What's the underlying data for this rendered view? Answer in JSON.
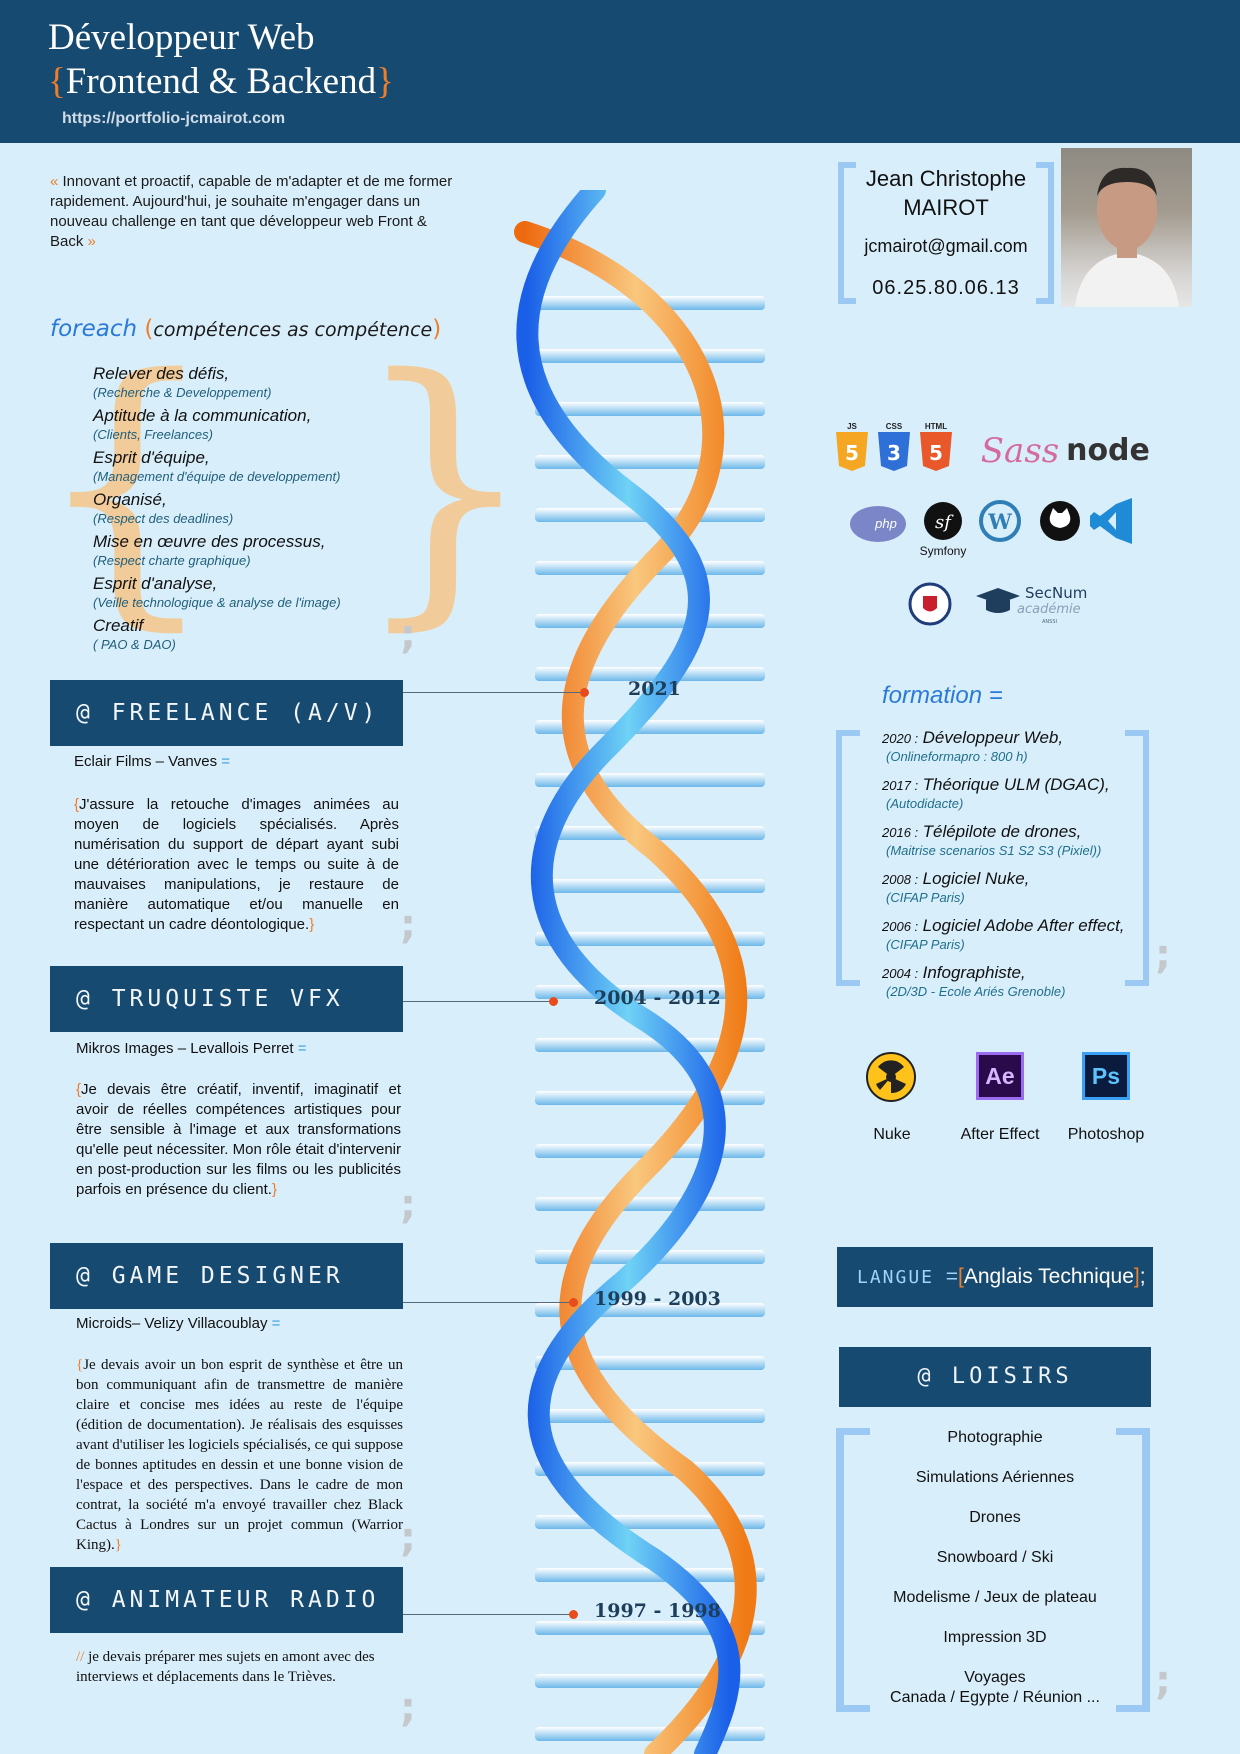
{
  "header": {
    "title_line1": "Développeur Web",
    "title_brace_open": "{",
    "title_line2": "Frontend & Backend",
    "title_brace_close": "}",
    "url": "https://portfolio-jcmairot.com"
  },
  "intro": {
    "open_quote": "«",
    "text": " Innovant et proactif, capable de m'adapter et de me former rapidement. Aujourd'hui, je souhaite m'engager dans un nouveau challenge en tant que développeur web Front & Back ",
    "close_quote": "»"
  },
  "skills": {
    "keyword": "foreach",
    "paren_open": "(",
    "argument": "compétences as compétence",
    "paren_close": ")",
    "items": [
      {
        "title": "Relever des défis,",
        "sub": "(Recherche & Developpement)"
      },
      {
        "title": "Aptitude à la communication,",
        "sub": "(Clients, Freelances)"
      },
      {
        "title": "Esprit d'équipe,",
        "sub": "(Management d'équipe de developpement)"
      },
      {
        "title": "Organisé,",
        "sub": "(Respect des deadlines)"
      },
      {
        "title": "Mise en œuvre des processus,",
        "sub": "(Respect charte graphique)"
      },
      {
        "title": "Esprit d'analyse,",
        "sub": "(Veille technologique & analyse de l'image)"
      },
      {
        "title": "Creatif",
        "sub": "( PAO & DAO)"
      }
    ]
  },
  "jobs": [
    {
      "title": "@ FREELANCE (A/V)",
      "company": "Eclair Films – Vanves",
      "eq": "=",
      "brace_open": "{",
      "desc": "J'assure la retouche d'images animées au moyen de logiciels spécialisés. Après numérisation du support de départ ayant subi une détérioration avec le temps ou suite à de mauvaises manipulations, je restaure de manière automatique et/ou manuelle en respectant un cadre déontologique.",
      "brace_close": "}",
      "year": "2021"
    },
    {
      "title": "@ TRUQUISTE VFX",
      "company": "Mikros Images – Levallois Perret",
      "eq": "=",
      "brace_open": "{",
      "desc": "Je devais être créatif, inventif, imaginatif et avoir de réelles compétences artistiques pour être sensible à l'image et aux transformations qu'elle peut nécessiter. Mon rôle était d'intervenir en post-production sur les films ou les publicités parfois en présence du client.",
      "brace_close": "}",
      "year": "2004 - 2012"
    },
    {
      "title": "@ GAME DESIGNER",
      "company": "Microids– Velizy Villacoublay",
      "eq": "=",
      "brace_open": "{",
      "desc": "Je devais avoir un bon esprit de synthèse et être un bon communiquant afin de transmettre de manière claire et concise mes idées au reste de l'équipe (édition de documentation). Je réalisais des esquisses avant d'utiliser les logiciels spécialisés, ce qui suppose de bonnes aptitudes en dessin et une bonne vision de l'espace et des perspectives. Dans le cadre de mon contrat, la société m'a envoyé travailler chez Black Cactus à Londres sur un projet commun (Warrior King).",
      "brace_close": "}",
      "year": "1999 - 2003"
    },
    {
      "title": "@ ANIMATEUR RADIO",
      "comment": "//",
      "desc": " je devais préparer mes sujets en amont avec des interviews et déplacements dans le Trièves.",
      "year": "1997 - 1998"
    }
  ],
  "identity": {
    "name_line1": "Jean Christophe",
    "name_line2": "MAIROT",
    "email": "jcmairot@gmail.com",
    "phone": "06.25.80.06.13"
  },
  "tech_logos": [
    {
      "icon": "js-icon",
      "label": "JS",
      "color": "#f5a623"
    },
    {
      "icon": "css-icon",
      "label": "CSS",
      "color": "#2f6fd8"
    },
    {
      "icon": "html-icon",
      "label": "HTML",
      "color": "#e8582a"
    },
    {
      "icon": "sass-icon",
      "label": "Sass",
      "color": "#d46a9e"
    },
    {
      "icon": "node-icon",
      "label": "node",
      "color": "#333333"
    },
    {
      "icon": "php-icon",
      "label": "php",
      "color": "#7a86c8"
    },
    {
      "icon": "symfony-icon",
      "label": "Symfony",
      "color": "#111111"
    },
    {
      "icon": "wordpress-icon",
      "label": "W",
      "color": "#2f7eb5"
    },
    {
      "icon": "github-icon",
      "label": "",
      "color": "#111111"
    },
    {
      "icon": "vscode-icon",
      "label": "",
      "color": "#1f8ad6"
    },
    {
      "icon": "anssi-icon",
      "label": "",
      "color": "#1f3d7a"
    },
    {
      "icon": "secnum-icon",
      "label": "SecNum",
      "sub": "académie",
      "tiny": "ANSSI",
      "color": "#1f3d5c"
    }
  ],
  "formation": {
    "title": "formation =",
    "items": [
      {
        "year": "2020 :",
        "title": "Développeur Web,",
        "sub": "(Onlineformapro  :  800 h)"
      },
      {
        "year": "2017 :",
        "title": "Théorique ULM (DGAC),",
        "sub": "(Autodidacte)"
      },
      {
        "year": "2016 :",
        "title": "Télépilote de drones,",
        "sub": "(Maitrise scenarios S1 S2 S3 (Pixiel))"
      },
      {
        "year": "2008 :",
        "title": "Logiciel Nuke,",
        "sub": "(CIFAP Paris)"
      },
      {
        "year": "2006 :",
        "title": "Logiciel Adobe After effect,",
        "sub": "(CIFAP Paris)"
      },
      {
        "year": "2004 :",
        "title": "Infographiste,",
        "sub": "(2D/3D - Ecole Ariés Grenoble)"
      }
    ]
  },
  "tools": [
    {
      "label": "Nuke",
      "icon": "nuke-icon"
    },
    {
      "label": "After Effect",
      "icon": "after-effect-icon",
      "glyph": "Ae"
    },
    {
      "label": "Photoshop",
      "icon": "photoshop-icon",
      "glyph": "Ps"
    }
  ],
  "langue": {
    "key": "LANGUE",
    "eq": "=",
    "bracket_open": "[",
    "value": "Anglais Technique",
    "bracket_close": "]",
    "semicolon": ";"
  },
  "loisirs": {
    "title": "@ LOISIRS",
    "items": [
      "Photographie",
      "Simulations Aériennes",
      "Drones",
      "Snowboard / Ski",
      "Modelisme / Jeux de plateau",
      "Impression 3D",
      "Voyages",
      "Canada / Egypte / Réunion ..."
    ]
  },
  "semicolon": ";",
  "colors": {
    "navy": "#174a70",
    "orange": "#f07d28",
    "accent_blue": "#2a7ad8",
    "bracket_blue": "#9cc9f4",
    "background": "#d9eefb"
  }
}
